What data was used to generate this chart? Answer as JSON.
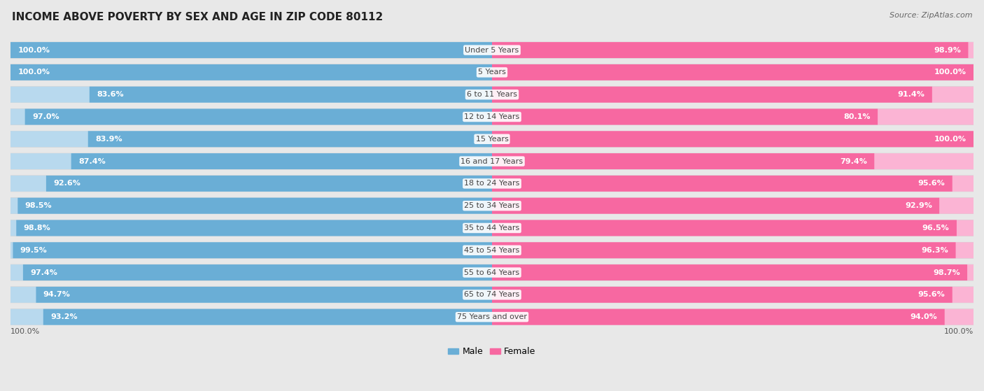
{
  "title": "INCOME ABOVE POVERTY BY SEX AND AGE IN ZIP CODE 80112",
  "source": "Source: ZipAtlas.com",
  "categories": [
    "Under 5 Years",
    "5 Years",
    "6 to 11 Years",
    "12 to 14 Years",
    "15 Years",
    "16 and 17 Years",
    "18 to 24 Years",
    "25 to 34 Years",
    "35 to 44 Years",
    "45 to 54 Years",
    "55 to 64 Years",
    "65 to 74 Years",
    "75 Years and over"
  ],
  "male_values": [
    100.0,
    100.0,
    83.6,
    97.0,
    83.9,
    87.4,
    92.6,
    98.5,
    98.8,
    99.5,
    97.4,
    94.7,
    93.2
  ],
  "female_values": [
    98.9,
    100.0,
    91.4,
    80.1,
    100.0,
    79.4,
    95.6,
    92.9,
    96.5,
    96.3,
    98.7,
    95.6,
    94.0
  ],
  "male_color_full": "#6aaed6",
  "male_color_light": "#b8d9ee",
  "female_color_full": "#f768a1",
  "female_color_light": "#fbb4d4",
  "bg_color": "#e8e8e8",
  "row_color_odd": "#f0f0f0",
  "row_color_even": "#ffffff",
  "label_color": "#444444",
  "value_color_on_full": "#ffffff",
  "value_color_on_light": "#888888",
  "title_fontsize": 11,
  "source_fontsize": 8,
  "label_fontsize": 8,
  "value_fontsize": 8,
  "legend_male": "Male",
  "legend_female": "Female",
  "axis_label": "100.0%",
  "max_value": 100.0
}
